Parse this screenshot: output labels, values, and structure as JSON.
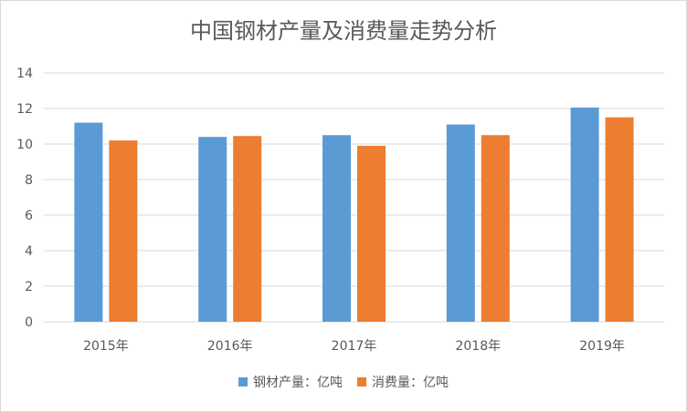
{
  "chart_data": {
    "type": "bar",
    "title": "中国钢材产量及消费量走势分析",
    "categories": [
      "2015年",
      "2016年",
      "2017年",
      "2018年",
      "2019年"
    ],
    "series": [
      {
        "name": "钢材产量：亿吨",
        "color": "#5b9bd5",
        "values": [
          11.2,
          10.4,
          10.5,
          11.1,
          12.05
        ]
      },
      {
        "name": "消费量：亿吨",
        "color": "#ed7d31",
        "values": [
          10.2,
          10.45,
          9.9,
          10.5,
          11.5
        ]
      }
    ],
    "yticks": [
      "0",
      "2",
      "4",
      "6",
      "8",
      "10",
      "12",
      "14"
    ],
    "ylim": [
      0,
      14
    ],
    "grid": true,
    "legend_position": "bottom"
  }
}
